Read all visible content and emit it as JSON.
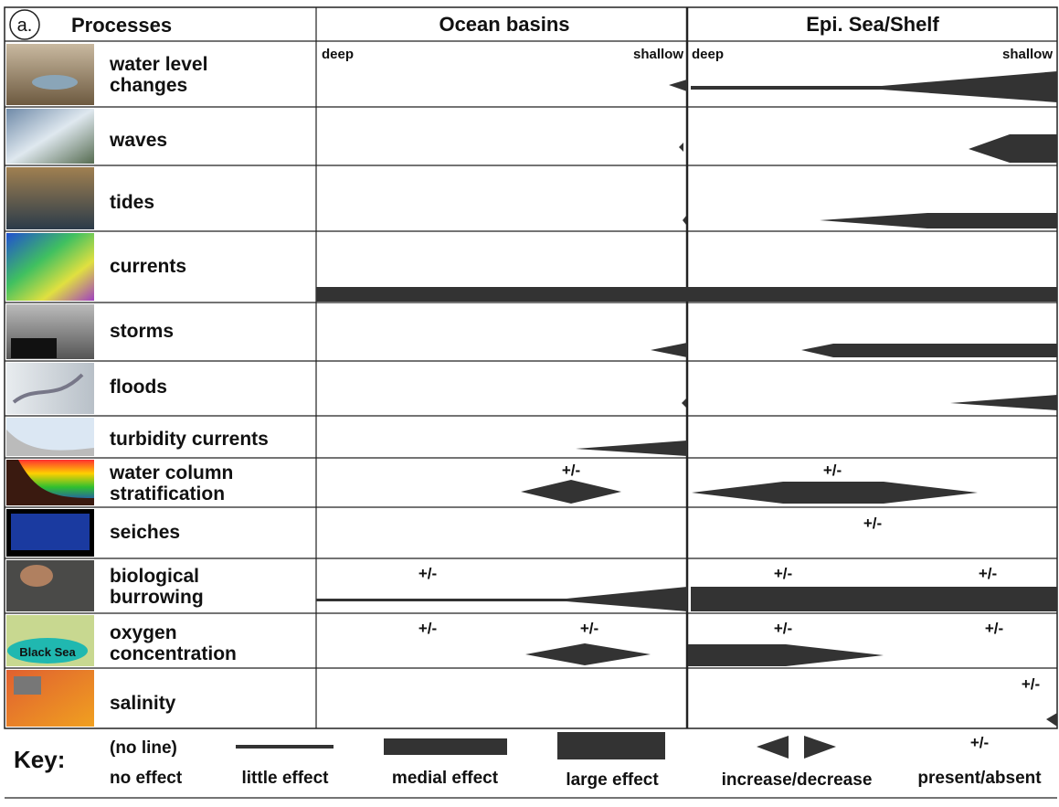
{
  "header": {
    "label": "a.",
    "title": "Processes",
    "columns": [
      "Ocean basins",
      "Epi. Sea/Shelf"
    ]
  },
  "scale": {
    "deep": "deep",
    "shallow": "shallow"
  },
  "rows": [
    {
      "label": [
        "water level",
        "changes"
      ]
    },
    {
      "label": [
        "waves"
      ]
    },
    {
      "label": [
        "tides"
      ]
    },
    {
      "label": [
        "currents"
      ]
    },
    {
      "label": [
        "storms"
      ]
    },
    {
      "label": [
        "floods"
      ]
    },
    {
      "label": [
        "turbidity currents"
      ]
    },
    {
      "label": [
        "water column",
        "stratification"
      ],
      "ocean_marks": [
        "+/-"
      ],
      "shelf_marks": [
        "+/-"
      ]
    },
    {
      "label": [
        "seiches"
      ],
      "shelf_marks": [
        "+/-"
      ]
    },
    {
      "label": [
        "biological",
        "burrowing"
      ],
      "ocean_marks": [
        "+/-"
      ],
      "shelf_marks": [
        "+/-",
        "+/-"
      ]
    },
    {
      "label": [
        "oxygen",
        "concentration"
      ],
      "ocean_marks": [
        "+/-",
        "+/-"
      ],
      "shelf_marks": [
        "+/-",
        "+/-"
      ],
      "image_text": "Black Sea"
    },
    {
      "label": [
        "salinity"
      ],
      "shelf_marks": [
        "+/-"
      ]
    }
  ],
  "key": {
    "title": "Key:",
    "items": [
      {
        "symbol": "(no line)",
        "label": "no effect"
      },
      {
        "label": "little effect"
      },
      {
        "label": "medial effect"
      },
      {
        "label": "large effect"
      },
      {
        "label": "increase/decrease"
      },
      {
        "symbol": "+/-",
        "label": "present/absent"
      }
    ]
  }
}
